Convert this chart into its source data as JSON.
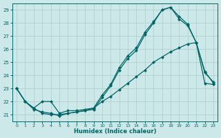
{
  "xlabel": "Humidex (Indice chaleur)",
  "bg_color": "#cce8e8",
  "line_color": "#006666",
  "grid_color": "#aacccc",
  "xlim": [
    -0.5,
    23.5
  ],
  "ylim": [
    20.5,
    29.5
  ],
  "yticks": [
    21,
    22,
    23,
    24,
    25,
    26,
    27,
    28,
    29
  ],
  "xticks": [
    0,
    1,
    2,
    3,
    4,
    5,
    6,
    7,
    8,
    9,
    10,
    11,
    12,
    13,
    14,
    15,
    16,
    17,
    18,
    19,
    20,
    21,
    22,
    23
  ],
  "line1_x": [
    0,
    1,
    2,
    3,
    4,
    5,
    6,
    7,
    8,
    9,
    10,
    11,
    12,
    13,
    14,
    15,
    16,
    17,
    18,
    19,
    20,
    21,
    22,
    23
  ],
  "line1_y": [
    23.0,
    22.0,
    21.5,
    21.1,
    21.0,
    21.0,
    21.1,
    21.2,
    21.3,
    21.5,
    22.5,
    23.3,
    24.6,
    25.5,
    26.1,
    27.3,
    28.1,
    29.0,
    29.2,
    28.5,
    27.9,
    26.5,
    24.3,
    23.4
  ],
  "line2_x": [
    0,
    1,
    2,
    3,
    4,
    5,
    6,
    7,
    8,
    9,
    10,
    11,
    12,
    13,
    14,
    15,
    16,
    17,
    18,
    19,
    20,
    21,
    22,
    23
  ],
  "line2_y": [
    23.0,
    22.0,
    21.4,
    21.2,
    21.1,
    20.9,
    21.1,
    21.2,
    21.3,
    21.4,
    22.3,
    23.2,
    24.4,
    25.3,
    25.9,
    27.1,
    28.0,
    29.0,
    29.2,
    28.3,
    27.8,
    26.5,
    24.2,
    23.5
  ],
  "line3_x": [
    0,
    1,
    2,
    3,
    4,
    5,
    6,
    7,
    8,
    9,
    10,
    11,
    12,
    13,
    14,
    15,
    16,
    17,
    18,
    19,
    20,
    21,
    22,
    23
  ],
  "line3_y": [
    23.0,
    22.0,
    21.5,
    22.0,
    22.0,
    21.1,
    21.3,
    21.3,
    21.4,
    21.5,
    22.0,
    22.4,
    22.9,
    23.4,
    23.9,
    24.4,
    25.0,
    25.4,
    25.8,
    26.1,
    26.4,
    26.5,
    23.4,
    23.3
  ]
}
